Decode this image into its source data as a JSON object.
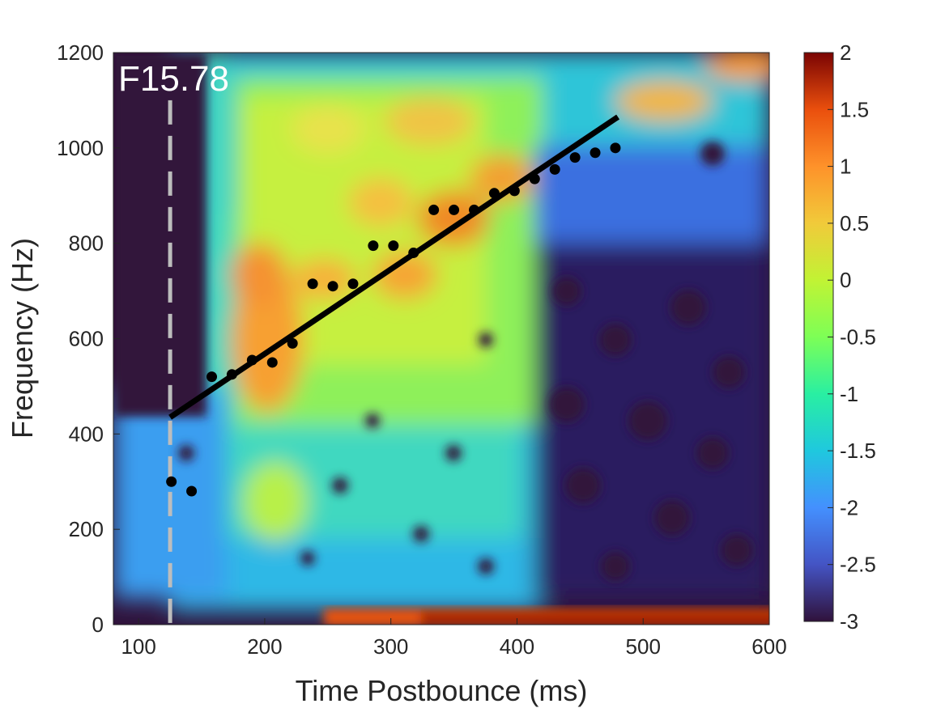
{
  "chart_data": {
    "type": "heatmap",
    "panel_label": "F15.78",
    "xlabel": "Time Postbounce (ms)",
    "ylabel": "Frequency (Hz)",
    "xlim": [
      80,
      600
    ],
    "ylim": [
      0,
      1200
    ],
    "x_ticks": [
      100,
      200,
      300,
      400,
      500,
      600
    ],
    "y_ticks": [
      0,
      200,
      400,
      600,
      800,
      1000,
      1200
    ],
    "colorbar": {
      "min": -3,
      "max": 2,
      "ticks": [
        2,
        1.5,
        1,
        0.5,
        0,
        -0.5,
        -1,
        -1.5,
        -2,
        -2.5,
        -3
      ],
      "colormap": "turbo"
    },
    "bounce_marker_x": 125,
    "peak_points": {
      "x": [
        126,
        142,
        158,
        174,
        190,
        206,
        222,
        238,
        254,
        270,
        286,
        302,
        318,
        334,
        350,
        366,
        382,
        398,
        414,
        430,
        446,
        462,
        478
      ],
      "y": [
        300,
        280,
        520,
        525,
        555,
        550,
        590,
        715,
        710,
        715,
        795,
        795,
        780,
        870,
        870,
        870,
        905,
        910,
        935,
        955,
        980,
        990,
        1000
      ]
    },
    "fit_line": {
      "x": [
        125,
        480
      ],
      "y": [
        435,
        1065
      ]
    },
    "colors": {
      "points": "#000000",
      "fit_line": "#000000",
      "bounce_marker": "#bdbdbd",
      "background_low": "#30123b"
    }
  }
}
